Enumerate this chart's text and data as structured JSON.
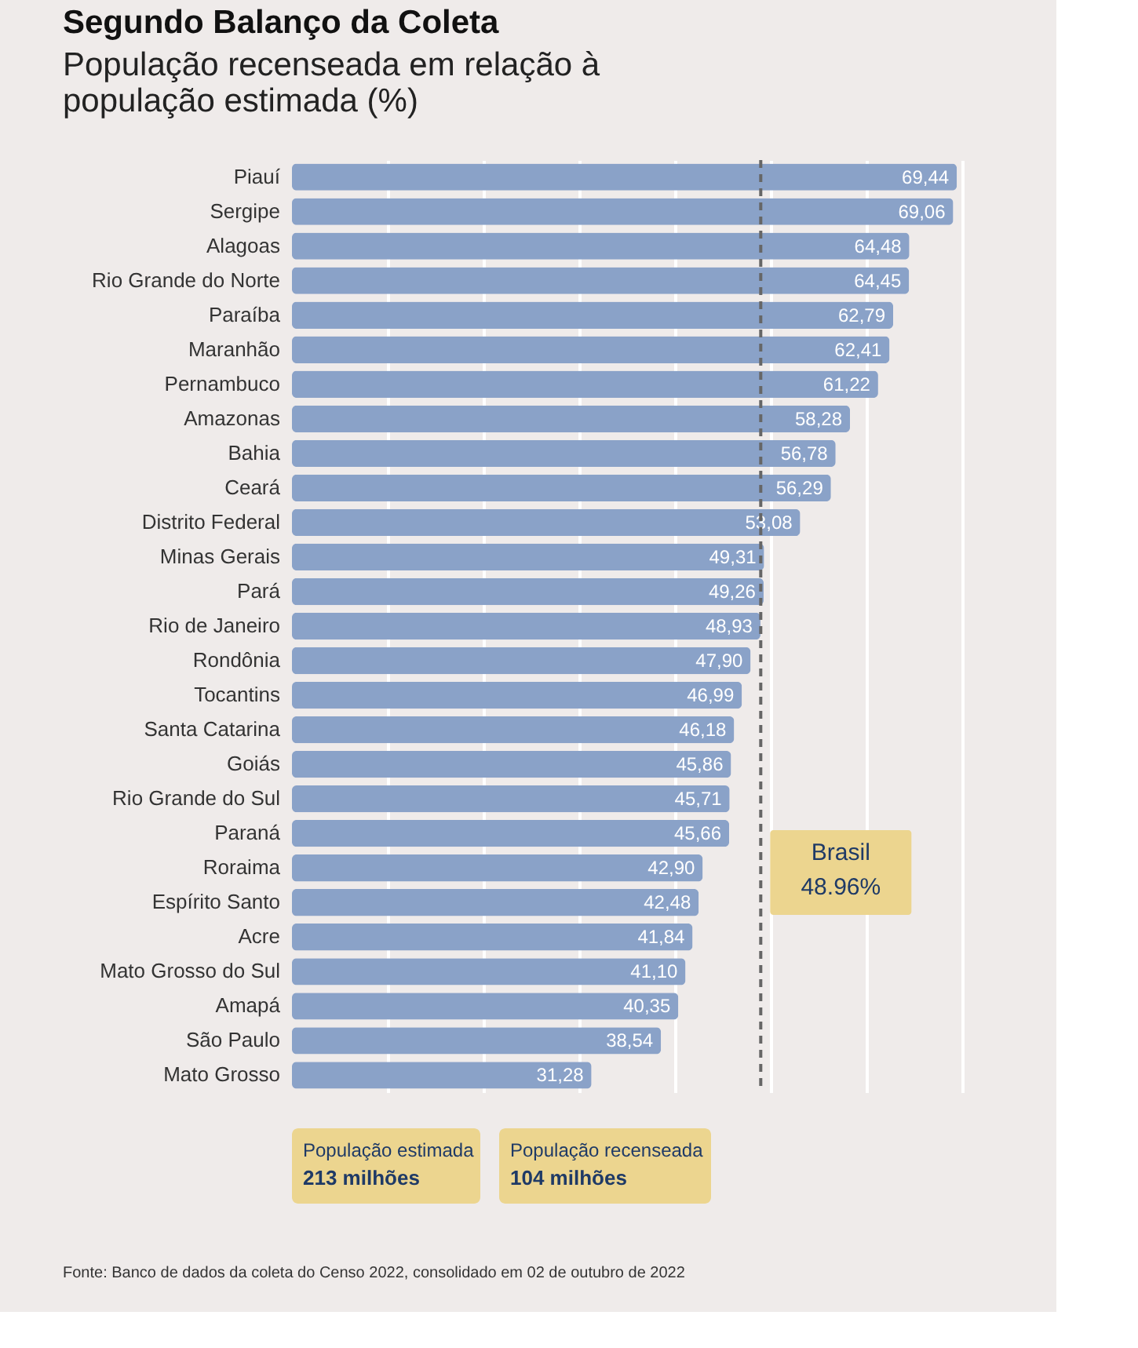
{
  "chart_data": {
    "type": "bar",
    "orientation": "horizontal",
    "title": "Segundo Balanço da Coleta",
    "subtitle": "População recenseada em relação à\npopulação estimada (%)",
    "categories": [
      "Piauí",
      "Sergipe",
      "Alagoas",
      "Rio Grande do Norte",
      "Paraíba",
      "Maranhão",
      "Pernambuco",
      "Amazonas",
      "Bahia",
      "Ceará",
      "Distrito Federal",
      "Minas Gerais",
      "Pará",
      "Rio de Janeiro",
      "Rondônia",
      "Tocantins",
      "Santa Catarina",
      "Goiás",
      "Rio Grande do Sul",
      "Paraná",
      "Roraima",
      "Espírito Santo",
      "Acre",
      "Mato Grosso do Sul",
      "Amapá",
      "São Paulo",
      "Mato Grosso"
    ],
    "values": [
      69.44,
      69.06,
      64.48,
      64.45,
      62.79,
      62.41,
      61.22,
      58.28,
      56.78,
      56.29,
      53.08,
      49.31,
      49.26,
      48.93,
      47.9,
      46.99,
      46.18,
      45.86,
      45.71,
      45.66,
      42.9,
      42.48,
      41.84,
      41.1,
      40.35,
      38.54,
      31.28
    ],
    "value_labels": [
      "69,44",
      "69,06",
      "64,48",
      "64,45",
      "62,79",
      "62,41",
      "61,22",
      "58,28",
      "56,78",
      "56,29",
      "53,08",
      "49,31",
      "49,26",
      "48,93",
      "47,90",
      "46,99",
      "46,18",
      "45,86",
      "45,71",
      "45,66",
      "42,90",
      "42,48",
      "41,84",
      "41,10",
      "40,35",
      "38,54",
      "31,28"
    ],
    "color": "#8aa2c8",
    "xlim": [
      0,
      70
    ],
    "xticks": [
      {
        "value": 10,
        "label": null
      },
      {
        "value": 20,
        "label": null
      },
      {
        "value": 30,
        "label": null
      },
      {
        "value": 40,
        "label": null
      },
      {
        "value": 50,
        "label": null
      },
      {
        "value": 60,
        "label": null
      },
      {
        "value": 70,
        "label": null
      }
    ],
    "grid": "x",
    "tick_labels": "y",
    "ref_lines": [
      {
        "axis": "x",
        "value": 48.96,
        "label": "Brasil\n48.96%",
        "color": "#666666",
        "line_style": "dashed"
      }
    ],
    "annotations": [
      "População estimada\n213 milhões",
      "População recenseada\n104 milhões",
      "Fonte: Banco de dados da coleta do Censo 2022, consolidado em 02 de outubro de 2022"
    ]
  }
}
